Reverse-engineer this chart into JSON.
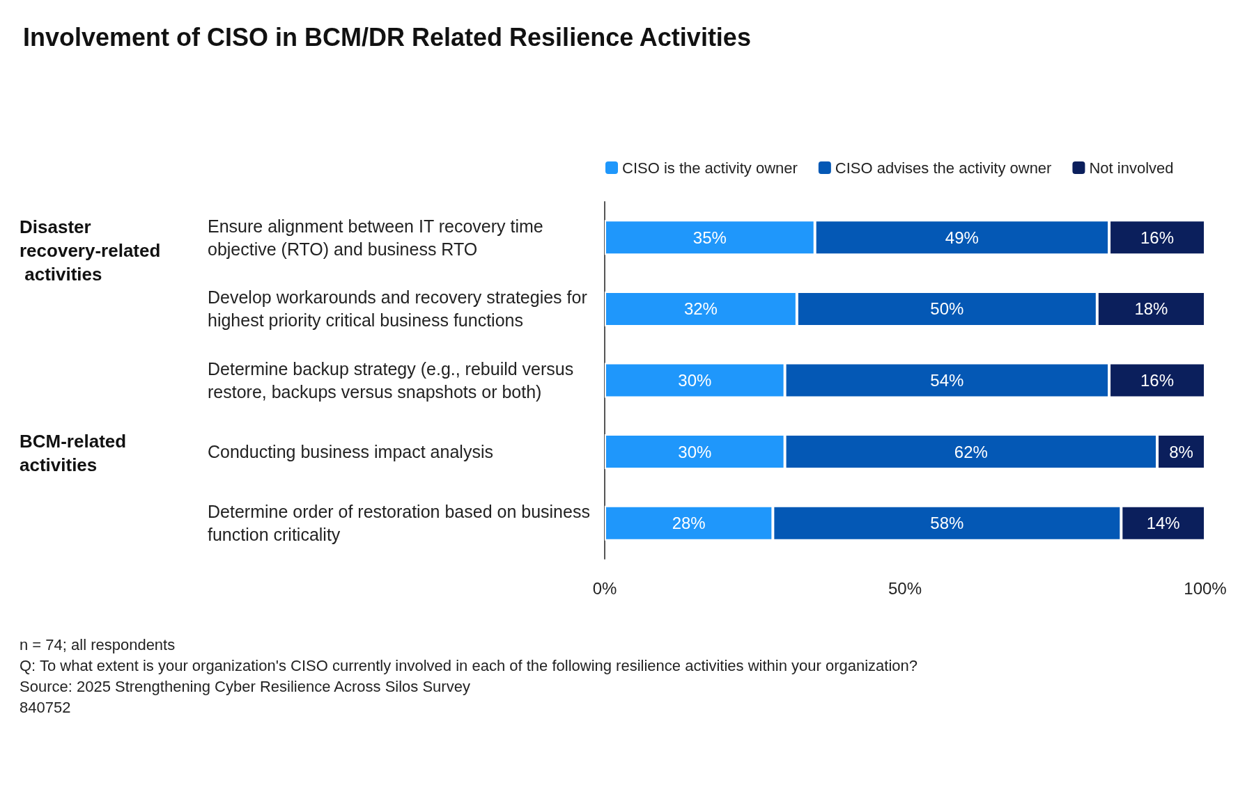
{
  "chart_data": {
    "type": "bar",
    "orientation": "horizontal",
    "stacked": true,
    "title": "Involvement of CISO in BCM/DR Related Resilience Activities",
    "categories": [
      "Ensure alignment between IT recovery time objective (RTO) and business RTO",
      "Develop workarounds and recovery strategies for highest priority critical business functions",
      "Determine backup strategy (e.g., rebuild versus restore, backups versus snapshots or both)",
      "Conducting business impact analysis",
      "Determine order of restoration based on business function criticality"
    ],
    "series": [
      {
        "name": "CISO is the activity owner",
        "color": "#1f97fb",
        "values": [
          35,
          32,
          30,
          30,
          28
        ],
        "value_labels": [
          "35%",
          "32%",
          "30%",
          "30%",
          "28%"
        ]
      },
      {
        "name": "CISO advises the activity owner",
        "color": "#0458b5",
        "values": [
          49,
          50,
          54,
          62,
          58
        ],
        "value_labels": [
          "49%",
          "50%",
          "54%",
          "62%",
          "58%"
        ]
      },
      {
        "name": "Not involved",
        "color": "#0b1f5c",
        "values": [
          16,
          18,
          16,
          8,
          14
        ],
        "value_labels": [
          "16%",
          "18%",
          "16%",
          "8%",
          "14%"
        ]
      }
    ],
    "xlim": [
      0,
      100
    ],
    "xticks": [
      {
        "value": 0,
        "label": "0%"
      },
      {
        "value": 50,
        "label": "50%"
      },
      {
        "value": 100,
        "label": "100%"
      }
    ],
    "grid": false,
    "legend": "top",
    "annotations": [
      "Disaster recovery-related activities",
      "BCM-related activities",
      "n = 74; all respondents",
      "Q: To what extent is your organization's CISO currently involved in each of the following resilience activities within your organization?",
      "Source: 2025 Strengthening Cyber Resilience Across Silos Survey",
      "840752"
    ]
  }
}
